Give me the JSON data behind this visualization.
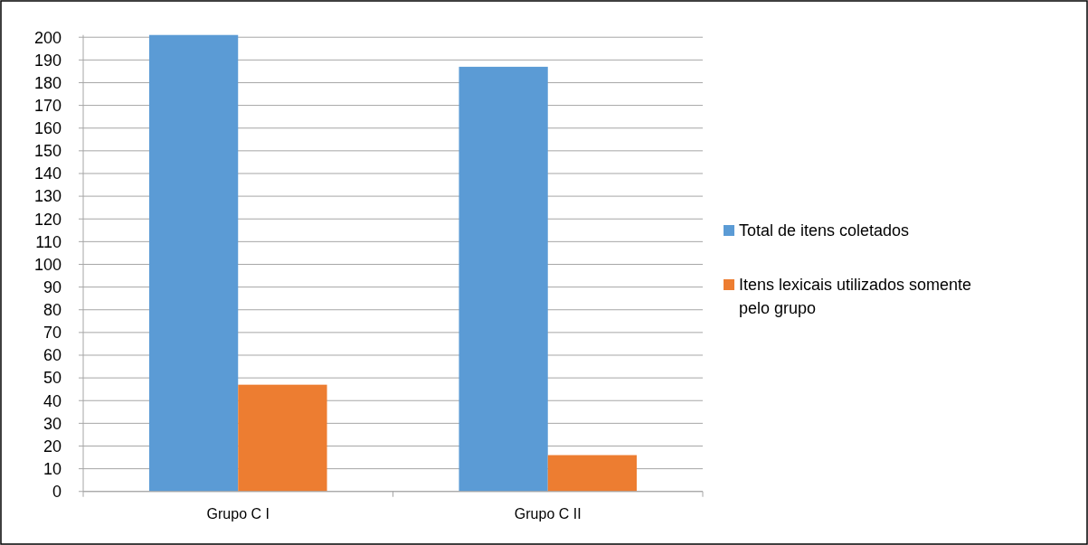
{
  "chart_data": {
    "type": "bar",
    "categories": [
      "Grupo C I",
      "Grupo C II"
    ],
    "series": [
      {
        "name": "Total de itens coletados",
        "color": "#5b9bd5",
        "values": [
          201,
          187
        ]
      },
      {
        "name": "Itens lexicais utilizados somente pelo grupo",
        "color": "#ed7d31",
        "values": [
          47,
          16
        ]
      }
    ],
    "ylim": [
      0,
      201
    ],
    "yticks": [
      0,
      10,
      20,
      30,
      40,
      50,
      60,
      70,
      80,
      90,
      100,
      110,
      120,
      130,
      140,
      150,
      160,
      170,
      180,
      190,
      200
    ],
    "grid": "y",
    "legend": "right"
  }
}
